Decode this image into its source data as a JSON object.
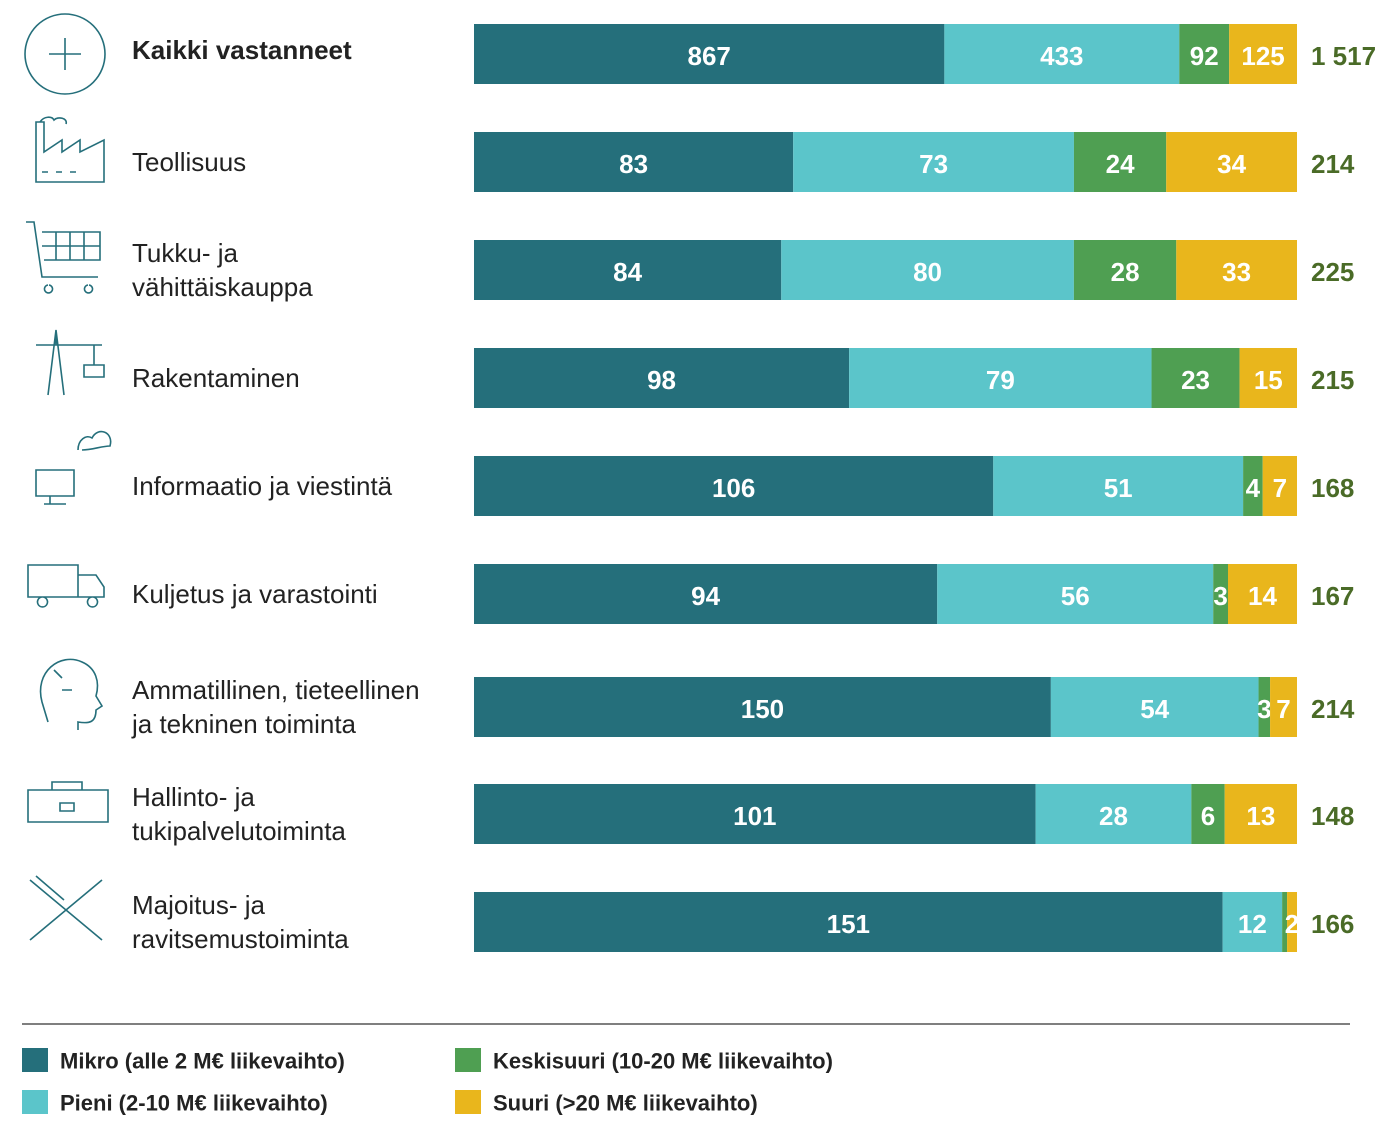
{
  "chart_data": {
    "type": "stacked-bar-100",
    "categories": [
      [
        "Kaikki vastanneet"
      ],
      [
        "Teollisuus"
      ],
      [
        "Tukku- ja",
        "vähittäiskauppa"
      ],
      [
        "Rakentaminen"
      ],
      [
        "Informaatio ja viestintä"
      ],
      [
        "Kuljetus ja varastointi"
      ],
      [
        "Ammatillinen, tieteellinen",
        "ja tekninen toiminta"
      ],
      [
        "Hallinto- ja",
        "tukipalvelutoiminta"
      ],
      [
        "Majoitus- ja",
        "ravitsemustoiminta"
      ]
    ],
    "series": [
      {
        "name": "Mikro (alle 2 M€ liikevaihto)",
        "color": "#256f7b",
        "values": [
          867,
          83,
          84,
          98,
          106,
          94,
          150,
          101,
          151
        ]
      },
      {
        "name": "Pieni (2-10 M€ liikevaihto)",
        "color": "#5bc5ca",
        "values": [
          433,
          73,
          80,
          79,
          51,
          56,
          54,
          28,
          12
        ]
      },
      {
        "name": "Keskisuuri (10-20 M€ liikevaihto)",
        "color": "#4f9f52",
        "values": [
          92,
          24,
          28,
          23,
          4,
          3,
          3,
          6,
          1
        ],
        "value_labels": [
          "92",
          "24",
          "28",
          "23",
          "4",
          "3",
          "3",
          "6",
          null
        ]
      },
      {
        "name": "Suuri (>20 M€ liikevaihto)",
        "color": "#e9b61c",
        "values": [
          125,
          34,
          33,
          15,
          7,
          14,
          7,
          13,
          2
        ]
      }
    ],
    "totals": [
      {
        "value": 1517,
        "label": "1 517"
      },
      214,
      225,
      215,
      168,
      167,
      214,
      148,
      166
    ],
    "totals_color": "#4a6b27"
  }
}
